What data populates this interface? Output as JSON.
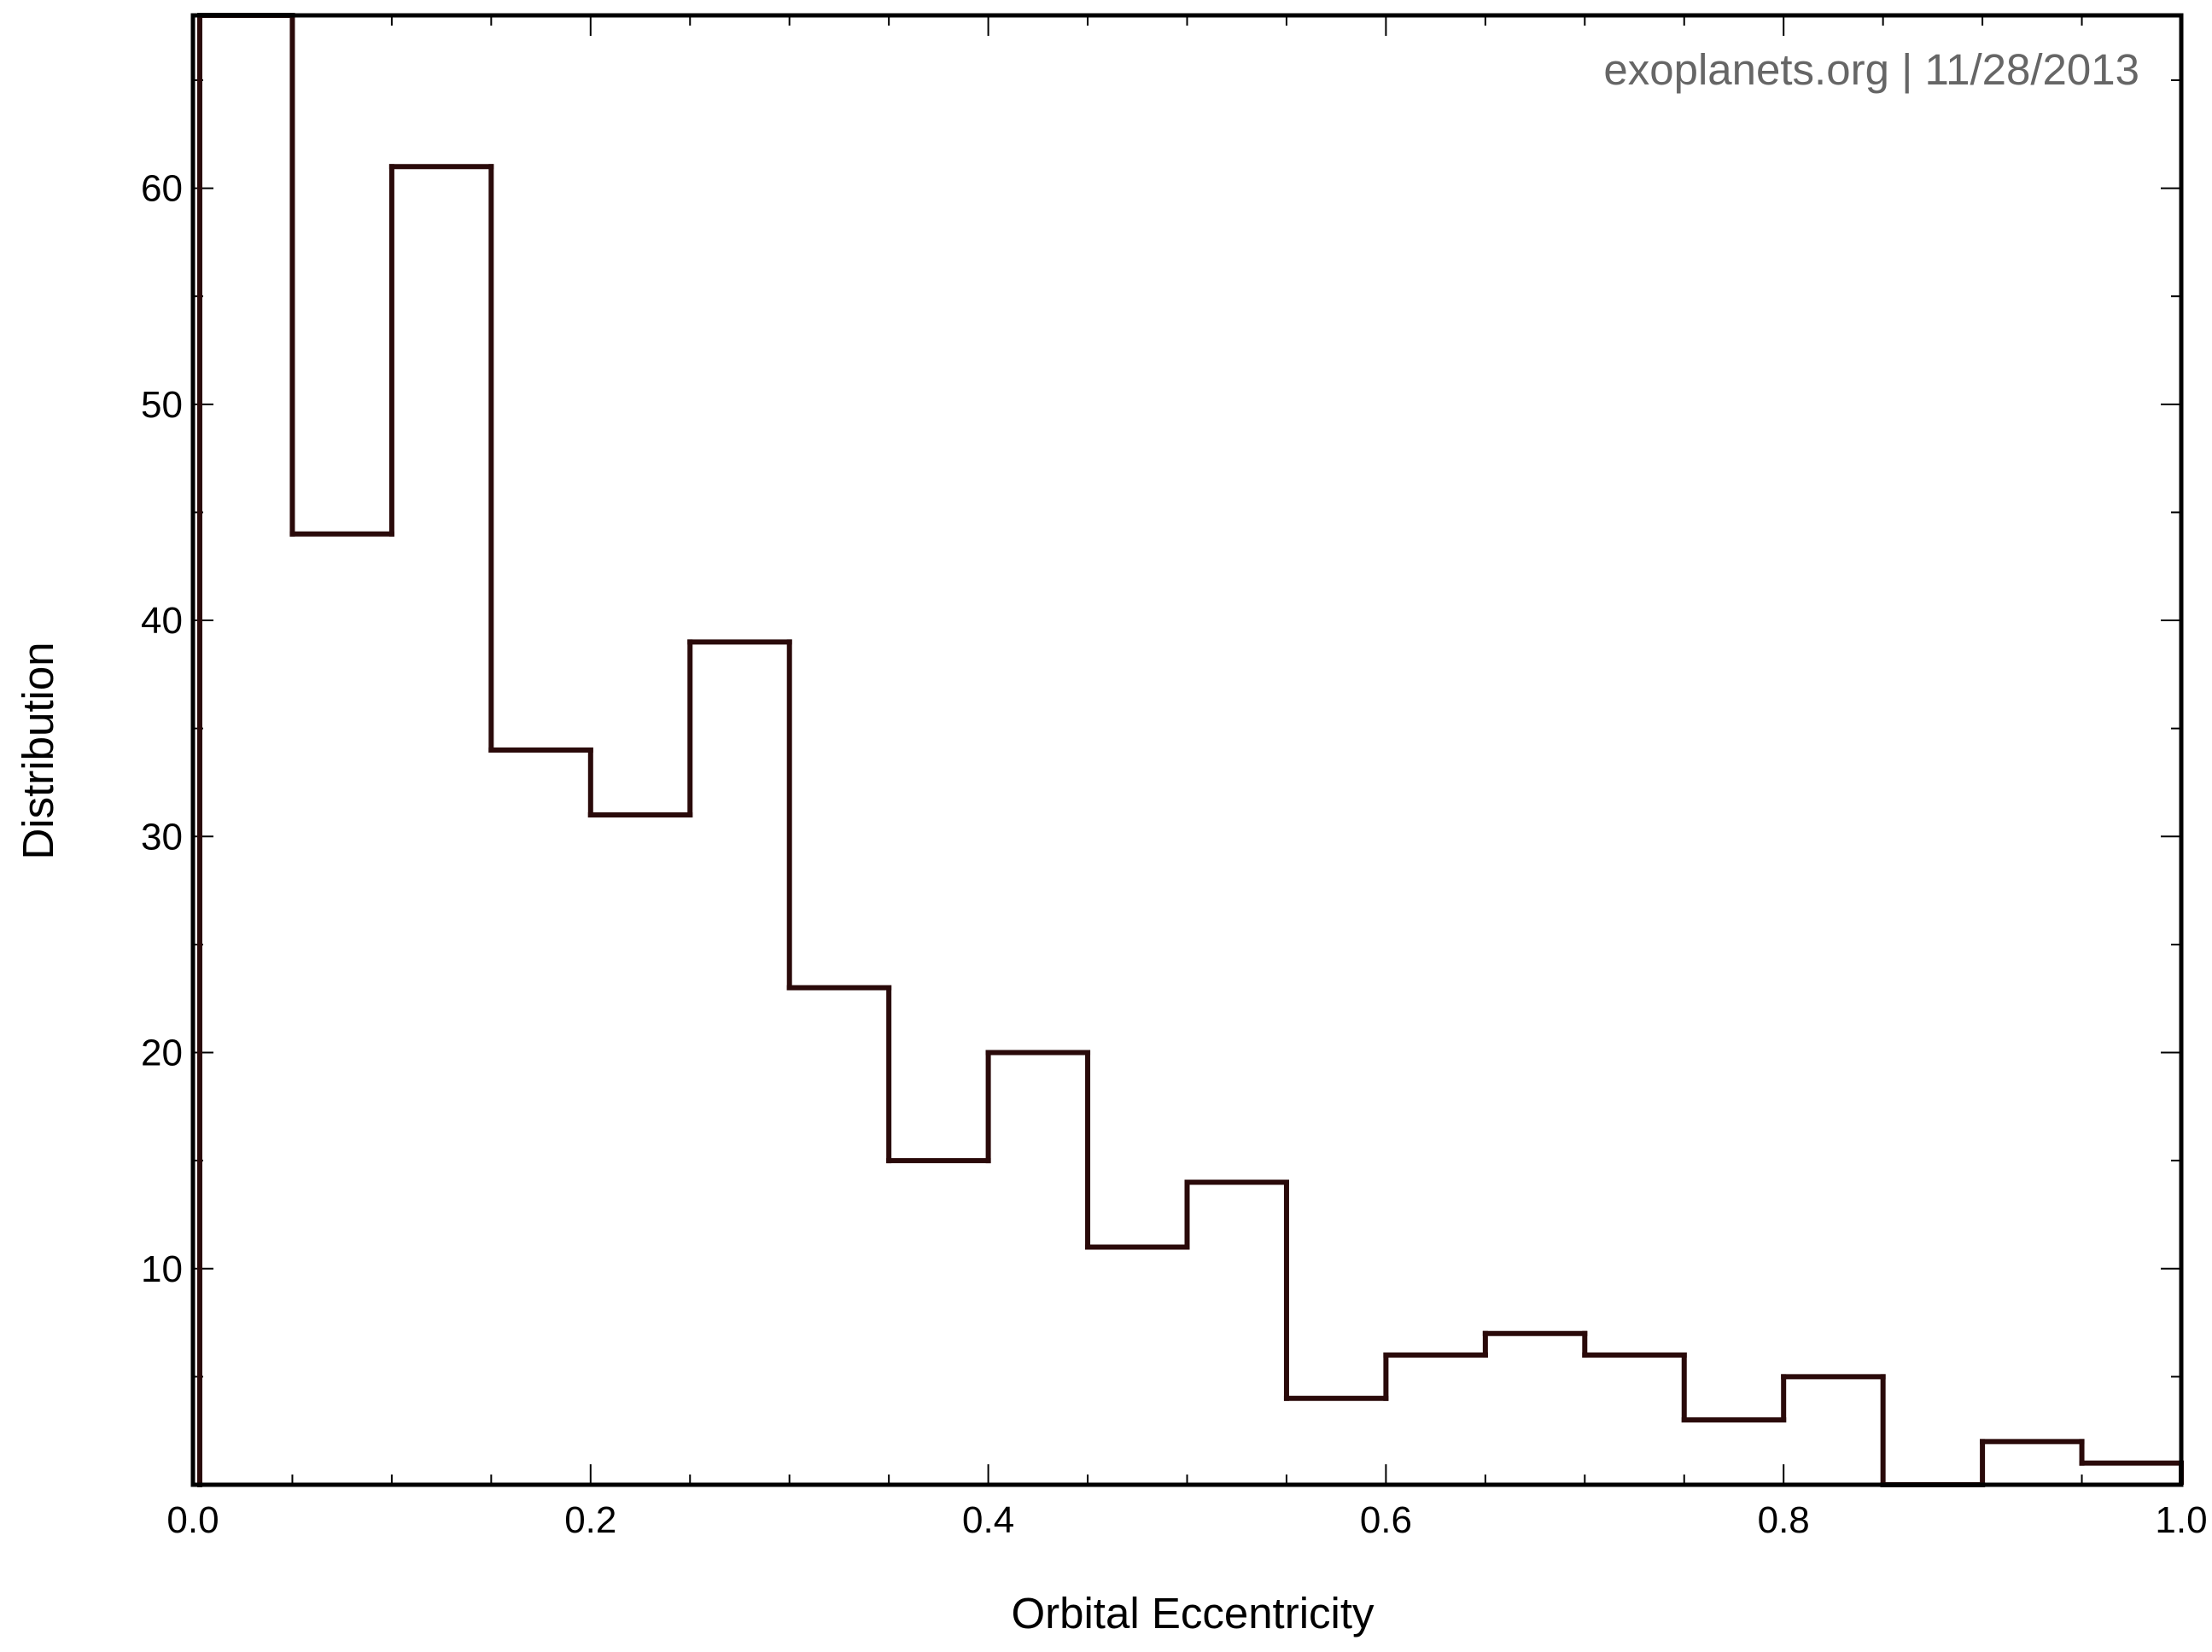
{
  "chart_data": {
    "type": "histogram",
    "title": "",
    "xlabel": "Orbital Eccentricity",
    "ylabel": "Distribution",
    "annotation": "exoplanets.org | 11/28/2013",
    "xlim": [
      0.0,
      1.0
    ],
    "ylim": [
      0,
      68
    ],
    "x_ticks": [
      0.0,
      0.2,
      0.4,
      0.6,
      0.8,
      1.0
    ],
    "x_tick_labels": [
      "0.0",
      "0.2",
      "0.4",
      "0.6",
      "0.8",
      "1.0"
    ],
    "x_minor_step": 0.05,
    "y_ticks": [
      10,
      20,
      30,
      40,
      50,
      60
    ],
    "y_tick_labels": [
      "10",
      "20",
      "30",
      "40",
      "50",
      "60"
    ],
    "y_minor_step": 5,
    "grid": false,
    "bin_edges": [
      0.0,
      0.05,
      0.1,
      0.15,
      0.2,
      0.25,
      0.3,
      0.35,
      0.4,
      0.45,
      0.5,
      0.55,
      0.6,
      0.65,
      0.7,
      0.75,
      0.8,
      0.85,
      0.9,
      0.95,
      1.0
    ],
    "values": [
      68,
      44,
      61,
      34,
      31,
      39,
      23,
      15,
      20,
      11,
      14,
      4,
      6,
      7,
      6,
      3,
      5,
      0,
      2,
      1
    ],
    "colors": {
      "line": "#2a0a0a",
      "axes": "#000000",
      "annotation": "#666666"
    }
  }
}
